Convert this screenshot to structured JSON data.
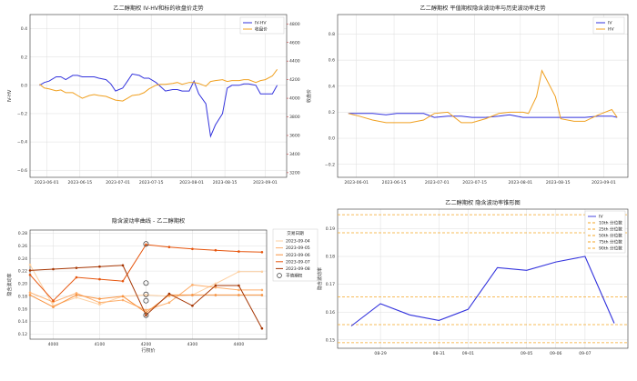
{
  "chart_data": [
    {
      "type": "line",
      "title": "乙二醇期权 IV-HV和标的收盘价走势",
      "xlabel": "",
      "ylabel": "IV-HV",
      "ylabel_right": "收盘价",
      "x_ticks": [
        "2023-06-01",
        "2023-06-15",
        "2023-07-01",
        "2023-07-15",
        "2023-08-01",
        "2023-08-15",
        "2023-09-01"
      ],
      "y_ticks": [
        "−0.6",
        "−0.4",
        "−0.2",
        "0.0",
        "0.2",
        "0.4"
      ],
      "y_right_ticks": [
        "3200",
        "3400",
        "3600",
        "3800",
        "4000",
        "4200",
        "4400",
        "4600",
        "4800"
      ],
      "ylim": [
        -0.65,
        0.5
      ],
      "ylim_right": [
        3150,
        4900
      ],
      "legend": "top-right",
      "grid": true,
      "series": [
        {
          "name": "IV-HV",
          "axis": "left",
          "color": "#3333dd",
          "x": [
            "2023-05-29",
            "2023-05-31",
            "2023-06-02",
            "2023-06-05",
            "2023-06-07",
            "2023-06-09",
            "2023-06-12",
            "2023-06-14",
            "2023-06-16",
            "2023-06-19",
            "2023-06-21",
            "2023-06-23",
            "2023-06-26",
            "2023-06-28",
            "2023-06-30",
            "2023-07-03",
            "2023-07-05",
            "2023-07-07",
            "2023-07-10",
            "2023-07-12",
            "2023-07-14",
            "2023-07-17",
            "2023-07-19",
            "2023-07-21",
            "2023-07-24",
            "2023-07-26",
            "2023-07-28",
            "2023-07-31",
            "2023-08-02",
            "2023-08-04",
            "2023-08-07",
            "2023-08-09",
            "2023-08-11",
            "2023-08-14",
            "2023-08-16",
            "2023-08-18",
            "2023-08-21",
            "2023-08-23",
            "2023-08-25",
            "2023-08-28",
            "2023-08-30",
            "2023-09-01",
            "2023-09-04",
            "2023-09-06"
          ],
          "values": [
            0.0,
            0.02,
            0.03,
            0.06,
            0.06,
            0.04,
            0.07,
            0.07,
            0.06,
            0.06,
            0.06,
            0.05,
            0.04,
            0.01,
            -0.04,
            -0.02,
            0.03,
            0.08,
            0.07,
            0.05,
            0.05,
            0.02,
            -0.01,
            -0.04,
            -0.03,
            -0.03,
            -0.04,
            -0.04,
            0.03,
            -0.06,
            -0.13,
            -0.36,
            -0.28,
            -0.2,
            -0.02,
            0.0,
            0.0,
            0.01,
            0.01,
            0.0,
            -0.06,
            -0.06,
            -0.06,
            0.0
          ]
        },
        {
          "name": "收盘价",
          "axis": "right",
          "color": "#f0a020",
          "x": [
            "2023-05-29",
            "2023-05-31",
            "2023-06-02",
            "2023-06-05",
            "2023-06-07",
            "2023-06-09",
            "2023-06-12",
            "2023-06-14",
            "2023-06-16",
            "2023-06-19",
            "2023-06-21",
            "2023-06-23",
            "2023-06-26",
            "2023-06-28",
            "2023-06-30",
            "2023-07-03",
            "2023-07-05",
            "2023-07-07",
            "2023-07-10",
            "2023-07-12",
            "2023-07-14",
            "2023-07-17",
            "2023-07-19",
            "2023-07-21",
            "2023-07-24",
            "2023-07-26",
            "2023-07-28",
            "2023-07-31",
            "2023-08-02",
            "2023-08-04",
            "2023-08-07",
            "2023-08-09",
            "2023-08-11",
            "2023-08-14",
            "2023-08-16",
            "2023-08-18",
            "2023-08-21",
            "2023-08-23",
            "2023-08-25",
            "2023-08-28",
            "2023-08-30",
            "2023-09-01",
            "2023-09-04",
            "2023-09-06"
          ],
          "values": [
            4150,
            4110,
            4100,
            4080,
            4090,
            4060,
            4060,
            4030,
            4000,
            4030,
            4040,
            4030,
            4020,
            4000,
            3980,
            3970,
            4000,
            4030,
            4040,
            4060,
            4100,
            4140,
            4150,
            4150,
            4160,
            4170,
            4150,
            4170,
            4170,
            4160,
            4130,
            4180,
            4190,
            4200,
            4180,
            4190,
            4190,
            4200,
            4200,
            4170,
            4190,
            4200,
            4240,
            4310
          ]
        }
      ]
    },
    {
      "type": "line",
      "title": "乙二醇期权 平值期权隐含波动率与历史波动率走势",
      "x_ticks": [
        "2023-06-01",
        "2023-06-15",
        "2023-07-01",
        "2023-07-15",
        "2023-08-01",
        "2023-08-15",
        "2023-09-01"
      ],
      "y_ticks": [
        "−0.2",
        "0.0",
        "0.2",
        "0.4",
        "0.6",
        "0.8"
      ],
      "ylim": [
        -0.3,
        0.95
      ],
      "legend": "top-right",
      "grid": true,
      "series": [
        {
          "name": "IV",
          "color": "#3333dd",
          "x": [
            "2023-05-29",
            "2023-06-02",
            "2023-06-07",
            "2023-06-12",
            "2023-06-16",
            "2023-06-21",
            "2023-06-26",
            "2023-06-30",
            "2023-07-05",
            "2023-07-10",
            "2023-07-14",
            "2023-07-19",
            "2023-07-24",
            "2023-07-28",
            "2023-08-02",
            "2023-08-07",
            "2023-08-11",
            "2023-08-16",
            "2023-08-21",
            "2023-08-25",
            "2023-08-30",
            "2023-09-04",
            "2023-09-06"
          ],
          "values": [
            0.19,
            0.19,
            0.19,
            0.18,
            0.19,
            0.19,
            0.19,
            0.16,
            0.17,
            0.17,
            0.16,
            0.16,
            0.17,
            0.18,
            0.16,
            0.16,
            0.16,
            0.16,
            0.16,
            0.16,
            0.17,
            0.17,
            0.16
          ]
        },
        {
          "name": "HV",
          "color": "#f0a020",
          "x": [
            "2023-05-29",
            "2023-06-02",
            "2023-06-07",
            "2023-06-12",
            "2023-06-16",
            "2023-06-21",
            "2023-06-26",
            "2023-06-30",
            "2023-07-05",
            "2023-07-10",
            "2023-07-14",
            "2023-07-19",
            "2023-07-24",
            "2023-07-28",
            "2023-08-02",
            "2023-08-04",
            "2023-08-07",
            "2023-08-09",
            "2023-08-11",
            "2023-08-14",
            "2023-08-16",
            "2023-08-21",
            "2023-08-25",
            "2023-08-30",
            "2023-09-04",
            "2023-09-06"
          ],
          "values": [
            0.19,
            0.17,
            0.14,
            0.12,
            0.12,
            0.12,
            0.14,
            0.19,
            0.2,
            0.12,
            0.12,
            0.15,
            0.19,
            0.2,
            0.2,
            0.19,
            0.32,
            0.52,
            0.44,
            0.32,
            0.15,
            0.13,
            0.13,
            0.18,
            0.22,
            0.16
          ]
        }
      ]
    },
    {
      "type": "line",
      "title": "隐含波动率曲线 - 乙二醇期权",
      "xlabel": "行权价",
      "ylabel": "隐含波动率",
      "x_ticks": [
        "4000",
        "4100",
        "4200",
        "4300",
        "4400"
      ],
      "y_ticks": [
        "0.12",
        "0.14",
        "0.16",
        "0.18",
        "0.20",
        "0.22",
        "0.24",
        "0.26",
        "0.28"
      ],
      "xlim": [
        3950,
        4460
      ],
      "ylim": [
        0.112,
        0.285
      ],
      "legend_title": "交易日期",
      "legend": "right",
      "grid": true,
      "x": [
        3950,
        4000,
        4050,
        4100,
        4150,
        4200,
        4250,
        4300,
        4350,
        4400,
        4450
      ],
      "series": [
        {
          "name": "2023-09-04",
          "color": "#fdd0a2",
          "values": [
            0.23,
            0.165,
            0.178,
            0.167,
            0.18,
            0.182,
            0.18,
            0.182,
            0.2,
            0.219,
            0.219
          ]
        },
        {
          "name": "2023-09-05",
          "color": "#fdae6b",
          "values": [
            0.186,
            0.171,
            0.185,
            0.17,
            0.174,
            0.158,
            0.17,
            0.198,
            0.194,
            0.19,
            0.19
          ]
        },
        {
          "name": "2023-09-06",
          "color": "#f8923f",
          "values": [
            0.182,
            0.163,
            0.182,
            0.176,
            0.18,
            0.154,
            0.182,
            0.182,
            0.182,
            0.182,
            0.182
          ]
        },
        {
          "name": "2023-09-07",
          "color": "#e6550d",
          "values": [
            0.214,
            0.173,
            0.21,
            0.207,
            0.204,
            0.262,
            0.258,
            0.255,
            0.253,
            0.251,
            0.25
          ]
        },
        {
          "name": "2023-09-08",
          "color": "#a63603",
          "values": [
            0.221,
            0.223,
            0.225,
            0.227,
            0.229,
            0.15,
            0.184,
            0.165,
            0.197,
            0.197,
            0.129
          ]
        }
      ],
      "atm_label": "平值期权",
      "atm_x": 4200,
      "atm_values": [
        0.263,
        0.201,
        0.183,
        0.173,
        0.15
      ]
    },
    {
      "type": "line",
      "title": "乙二醇期权 隐含波动率锥形图",
      "xlabel": "",
      "ylabel": "隐含波动率",
      "x_ticks": [
        "08-29",
        "08-31",
        "09-01",
        "09-05",
        "09-06",
        "09-07"
      ],
      "y_ticks": [
        "0.15",
        "0.16",
        "0.17",
        "0.18",
        "0.19"
      ],
      "ylim": [
        0.147,
        0.197
      ],
      "legend": "top-right",
      "grid": true,
      "series": [
        {
          "name": "IV",
          "color": "#3333dd",
          "x": [
            "08-28",
            "08-29",
            "08-30",
            "08-31",
            "09-01",
            "09-04",
            "09-05",
            "09-06",
            "09-07",
            "09-08"
          ],
          "values": [
            0.155,
            0.163,
            0.159,
            0.157,
            0.161,
            0.176,
            0.175,
            0.178,
            0.18,
            0.156
          ]
        }
      ],
      "percentiles": [
        {
          "name": "90th 分位数",
          "value": 0.195,
          "color": "#f5a623"
        },
        {
          "name": "75th 分位数",
          "value": 0.1885,
          "color": "#f5a623"
        },
        {
          "name": "50th 分位数",
          "value": 0.1655,
          "color": "#f5a623"
        },
        {
          "name": "25th 分位数",
          "value": 0.1555,
          "color": "#f5a623"
        },
        {
          "name": "10th 分位数",
          "value": 0.149,
          "color": "#f5a623"
        }
      ]
    }
  ]
}
